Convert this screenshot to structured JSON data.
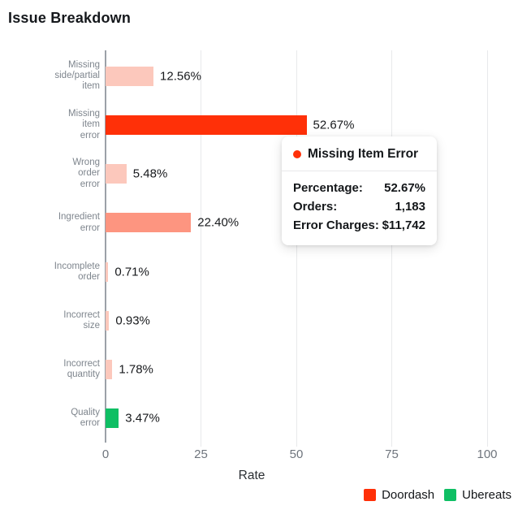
{
  "chart_data": {
    "type": "bar",
    "orientation": "horizontal",
    "title": "Issue Breakdown",
    "xlabel": "Rate",
    "xlim": [
      0,
      100
    ],
    "xticks": [
      0,
      25,
      50,
      75,
      100
    ],
    "grid": "vertical",
    "legend_position": "bottom-right",
    "categories": [
      "Missing side/partial item",
      "Missing item error",
      "Wrong order error",
      "Ingredient error",
      "Incomplete order",
      "Incorrect size",
      "Incorrect quantity",
      "Quality error"
    ],
    "values": [
      12.56,
      52.67,
      5.48,
      22.4,
      0.71,
      0.93,
      1.78,
      3.47
    ],
    "bars": [
      {
        "label": "Missing side/partial item",
        "lines": "Missing\nside/partial\nitem",
        "value": 12.56,
        "display": "12.56%",
        "series": "Doordash",
        "color": "#FCC8BC"
      },
      {
        "label": "Missing item error",
        "lines": "Missing\nitem\nerror",
        "value": 52.67,
        "display": "52.67%",
        "series": "Doordash",
        "color": "#FF3008"
      },
      {
        "label": "Wrong order error",
        "lines": "Wrong\norder\nerror",
        "value": 5.48,
        "display": "5.48%",
        "series": "Doordash",
        "color": "#FCC8BC"
      },
      {
        "label": "Ingredient error",
        "lines": "Ingredient\nerror",
        "value": 22.4,
        "display": "22.40%",
        "series": "Doordash",
        "color": "#FD9580"
      },
      {
        "label": "Incomplete order",
        "lines": "Incomplete\norder",
        "value": 0.71,
        "display": "0.71%",
        "series": "Doordash",
        "color": "#FCC8BC"
      },
      {
        "label": "Incorrect size",
        "lines": "Incorrect\nsize",
        "value": 0.93,
        "display": "0.93%",
        "series": "Doordash",
        "color": "#FCC8BC"
      },
      {
        "label": "Incorrect quantity",
        "lines": "Incorrect\nquantity",
        "value": 1.78,
        "display": "1.78%",
        "series": "Doordash",
        "color": "#FCC8BC"
      },
      {
        "label": "Quality error",
        "lines": "Quality\nerror",
        "value": 3.47,
        "display": "3.47%",
        "series": "Ubereats",
        "color": "#0FBF64"
      }
    ],
    "legend": [
      {
        "label": "Doordash",
        "color": "#FF3008"
      },
      {
        "label": "Ubereats",
        "color": "#0FBF64"
      }
    ]
  },
  "tooltip": {
    "title": "Missing Item Error",
    "dot_color": "#FF3008",
    "rows": [
      {
        "label": "Percentage:",
        "value": "52.67%"
      },
      {
        "label": "Orders:",
        "value": "1,183"
      },
      {
        "label": "Error Charges:",
        "value": "$11,742"
      }
    ]
  },
  "colors": {
    "doordash_red": "#FF3008",
    "ubereats_green": "#0FBF64",
    "bar_light_pink": "#FCC8BC",
    "bar_salmon": "#FD9580",
    "axis_line": "#9ba1a8",
    "gridline": "#e8e9eb"
  }
}
